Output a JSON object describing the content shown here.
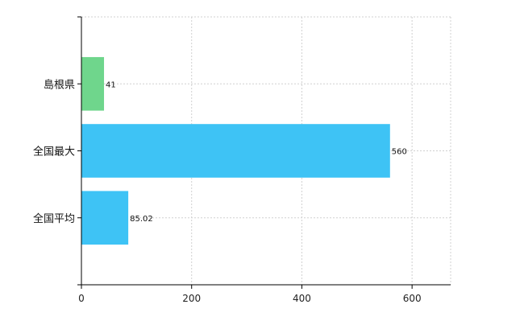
{
  "chart_data": {
    "type": "bar",
    "orientation": "horizontal",
    "categories": [
      "島根県",
      "全国最大",
      "全国平均"
    ],
    "values": [
      41,
      560,
      85.02
    ],
    "value_labels": [
      "41",
      "560",
      "85.02"
    ],
    "colors": [
      "#6fd68c",
      "#3ec3f5",
      "#3ec3f5"
    ],
    "xlim": [
      0,
      670
    ],
    "xticks": [
      0,
      200,
      400,
      600
    ],
    "grid": true,
    "title": "",
    "xlabel": "",
    "ylabel": ""
  }
}
